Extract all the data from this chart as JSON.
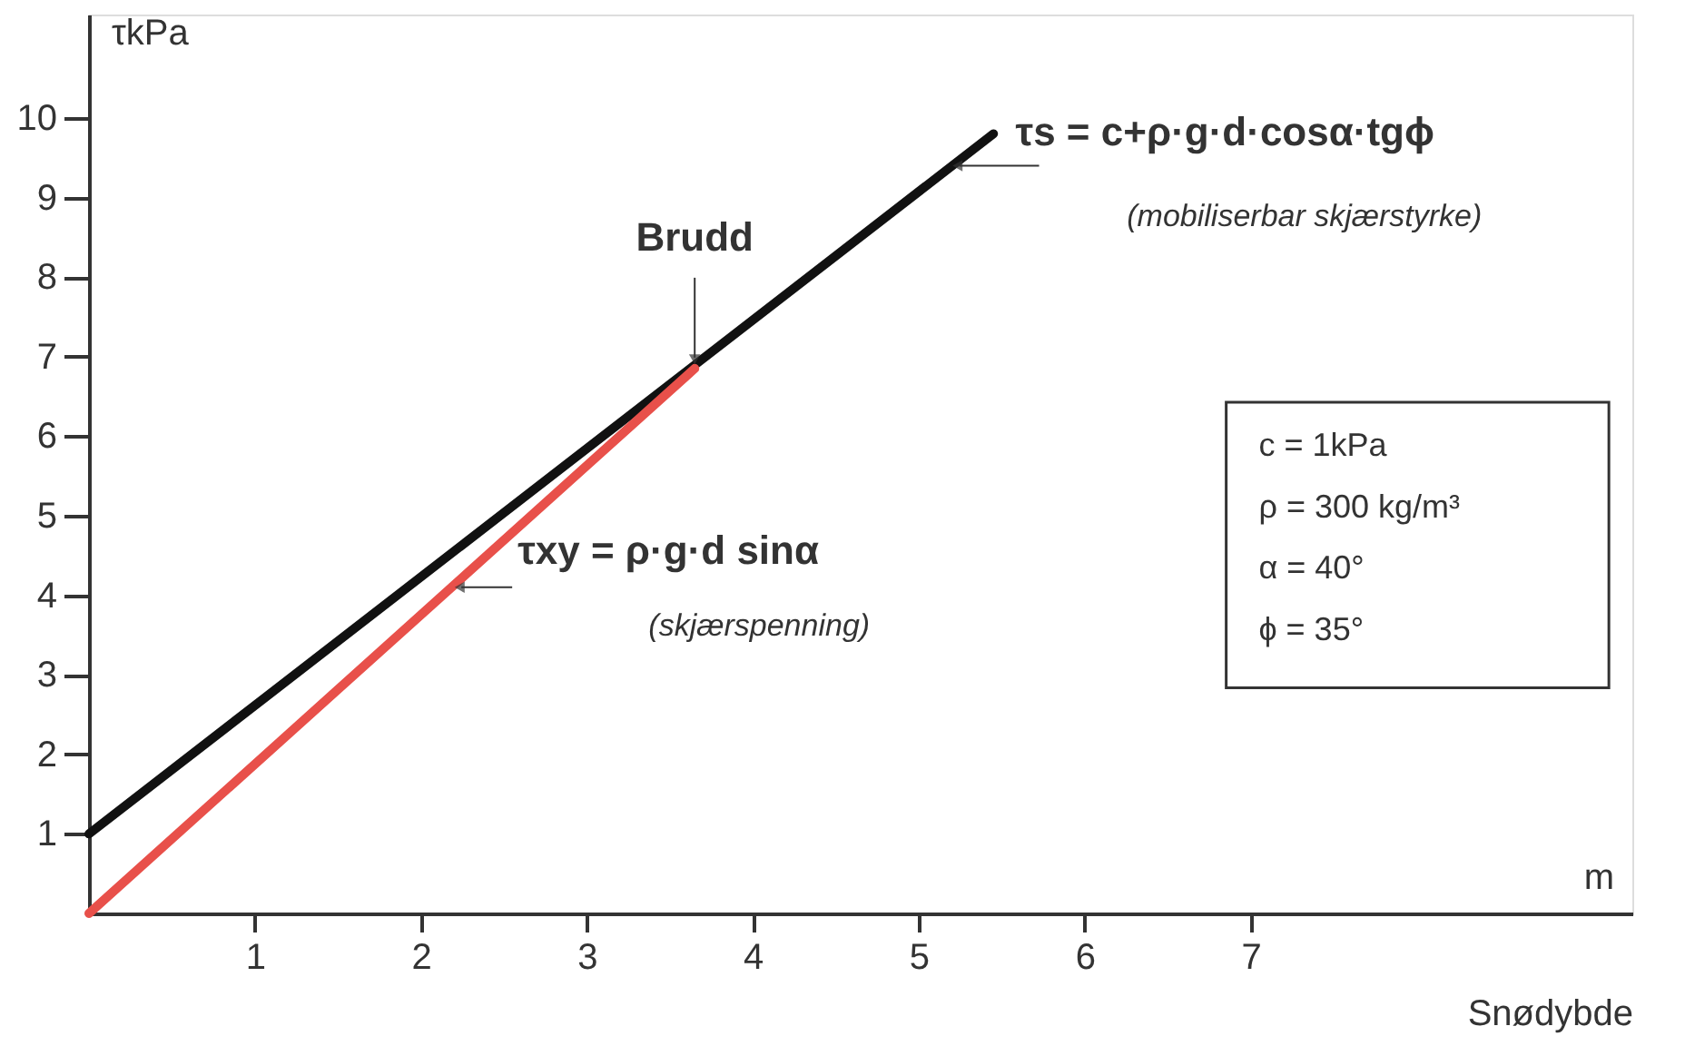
{
  "chart_data": {
    "type": "line",
    "xlabel": "Snødybde",
    "ylabel": "τkPa",
    "series": [
      {
        "color": "#111111",
        "x": [
          0,
          5.45
        ],
        "values": [
          1,
          9.8
        ]
      },
      {
        "color": "#e8504a",
        "x": [
          0,
          3.65
        ],
        "values": [
          0,
          6.85
        ]
      }
    ],
    "xlim": [
      0,
      9.3
    ],
    "ylim": [
      0,
      11.3
    ],
    "xticks": [
      1,
      2,
      3,
      4,
      5,
      6,
      7
    ],
    "yticks": [
      1,
      2,
      3,
      4,
      5,
      6,
      7,
      8,
      9,
      10
    ],
    "grid": false,
    "marker": "none",
    "line_style": "solid",
    "annotations": [
      {
        "text": "Brudd",
        "x": 3.65,
        "y": 6.85
      },
      {
        "text": "τs = c+ρ·g·d·cosα·tgϕ",
        "x": 5.2,
        "y": 9.4
      },
      "(mobiliserbar skjærstyrke)",
      {
        "text": "τxy = ρ·g·d sinα",
        "x": 2.2,
        "y": 4.1
      },
      "(skjærspenning)",
      "c = 1kPa",
      "ρ = 300 kg/m³",
      "α = 40°",
      "ϕ = 35°",
      "m"
    ]
  }
}
